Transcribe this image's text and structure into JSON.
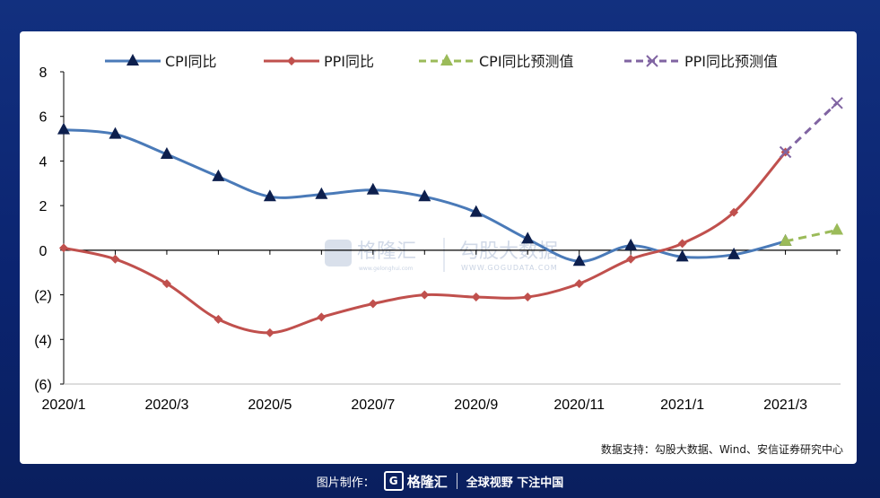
{
  "chart_data": {
    "type": "line",
    "x": [
      "2020/1",
      "2020/2",
      "2020/3",
      "2020/4",
      "2020/5",
      "2020/6",
      "2020/7",
      "2020/8",
      "2020/9",
      "2020/10",
      "2020/11",
      "2020/12",
      "2021/1",
      "2021/2",
      "2021/3",
      "2021/4"
    ],
    "xticks": [
      "2020/1",
      "2020/3",
      "2020/5",
      "2020/7",
      "2020/9",
      "2020/11",
      "2021/1",
      "2021/3"
    ],
    "ylim": [
      -6,
      8
    ],
    "yticks": [
      "8",
      "6",
      "4",
      "2",
      "0",
      "(2)",
      "(4)",
      "(6)"
    ],
    "series": [
      {
        "name": "CPI同比",
        "color": "#4a7ab8",
        "marker": "triangle",
        "dashed": false,
        "values": [
          5.4,
          5.2,
          4.3,
          3.3,
          2.4,
          2.5,
          2.7,
          2.4,
          1.7,
          0.5,
          -0.5,
          0.2,
          -0.3,
          -0.2,
          0.4,
          null
        ]
      },
      {
        "name": "PPI同比",
        "color": "#c0504d",
        "marker": "diamond",
        "dashed": false,
        "values": [
          0.1,
          -0.4,
          -1.5,
          -3.1,
          -3.7,
          -3.0,
          -2.4,
          -2.0,
          -2.1,
          -2.1,
          -1.5,
          -0.4,
          0.3,
          1.7,
          4.4,
          null
        ]
      },
      {
        "name": "CPI同比预测值",
        "color": "#9bbb59",
        "marker": "triangle",
        "dashed": true,
        "values": [
          null,
          null,
          null,
          null,
          null,
          null,
          null,
          null,
          null,
          null,
          null,
          null,
          null,
          null,
          0.4,
          0.9
        ]
      },
      {
        "name": "PPI同比预测值",
        "color": "#8064a2",
        "marker": "x",
        "dashed": true,
        "values": [
          null,
          null,
          null,
          null,
          null,
          null,
          null,
          null,
          null,
          null,
          null,
          null,
          null,
          null,
          4.4,
          6.6
        ]
      }
    ],
    "negative_tick_color": "#cc0000",
    "watermark": {
      "brand_cn": "格隆汇",
      "brand_url": "www.gelonghui.com",
      "data_cn": "勾股大数据",
      "data_url": "WWW.GOGUDATA.COM"
    },
    "source": "数据支持：勾股大数据、Wind、安信证券研究中心",
    "legend_position": "top"
  },
  "footer": {
    "made_by_label": "图片制作：",
    "brand": "格隆汇",
    "brand_url": "www.gelonghui.com",
    "slogan": "全球视野 下注中国"
  }
}
